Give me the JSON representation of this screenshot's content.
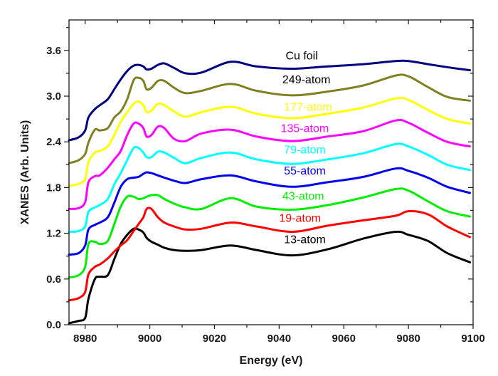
{
  "chart_data": {
    "type": "line",
    "title": "",
    "xlabel": "Energy (eV)",
    "ylabel": "XANES (Arb. Units)",
    "xlim": [
      8975,
      9100
    ],
    "ylim": [
      0,
      4.0
    ],
    "xticks": [
      8980,
      9000,
      9020,
      9040,
      9060,
      9080,
      9100
    ],
    "xtick_labels": [
      "8980",
      "9000",
      "9020",
      "9040",
      "9060",
      "9080",
      "9100"
    ],
    "xminor_step": 10,
    "yticks": [
      0.0,
      0.6,
      1.2,
      1.8,
      2.4,
      3.0,
      3.6
    ],
    "ytick_labels": [
      "0.0",
      "0.6",
      "1.2",
      "1.8",
      "2.4",
      "3.0",
      "3.6"
    ],
    "yminor_step": 0.3,
    "grid": false,
    "legend": "inline labels centered over each curve",
    "x": [
      8975,
      8978,
      8980,
      8981,
      8983,
      8984.5,
      8987,
      8989,
      8991,
      8993,
      8995,
      8996.5,
      8998,
      8999,
      9000.5,
      9002.5,
      9004.5,
      9007.5,
      9011,
      9016,
      9025,
      9033,
      9044,
      9055,
      9066,
      9076,
      9080,
      9086,
      9092,
      9099
    ],
    "series": [
      {
        "name": "13-atom",
        "color": "#000000",
        "values": [
          0.02,
          0.05,
          0.09,
          0.34,
          0.6,
          0.63,
          0.65,
          0.86,
          1.06,
          1.18,
          1.26,
          1.25,
          1.21,
          1.14,
          1.09,
          1.05,
          1.01,
          0.98,
          0.97,
          0.98,
          1.04,
          0.98,
          0.91,
          0.99,
          1.13,
          1.22,
          1.18,
          1.1,
          0.94,
          0.82
        ]
      },
      {
        "name": "19-atom",
        "color": "#ff0000",
        "values": [
          0.32,
          0.35,
          0.43,
          0.66,
          0.76,
          0.79,
          0.87,
          0.96,
          1.04,
          1.11,
          1.23,
          1.32,
          1.41,
          1.52,
          1.52,
          1.41,
          1.34,
          1.29,
          1.25,
          1.26,
          1.34,
          1.29,
          1.22,
          1.3,
          1.37,
          1.43,
          1.49,
          1.45,
          1.29,
          1.15
        ]
      },
      {
        "name": "43-atom",
        "color": "#00ee00",
        "values": [
          0.62,
          0.65,
          0.76,
          1.06,
          1.09,
          1.06,
          1.1,
          1.32,
          1.55,
          1.68,
          1.68,
          1.65,
          1.66,
          1.68,
          1.7,
          1.7,
          1.65,
          1.59,
          1.54,
          1.52,
          1.66,
          1.55,
          1.51,
          1.57,
          1.67,
          1.78,
          1.76,
          1.62,
          1.49,
          1.42
        ]
      },
      {
        "name": "55-atom",
        "color": "#0000ee",
        "values": [
          0.92,
          0.94,
          1.04,
          1.25,
          1.31,
          1.34,
          1.41,
          1.6,
          1.81,
          1.91,
          1.93,
          1.94,
          1.98,
          2.0,
          1.99,
          1.96,
          1.93,
          1.89,
          1.86,
          1.91,
          1.96,
          1.88,
          1.81,
          1.87,
          1.94,
          2.05,
          2.02,
          1.93,
          1.81,
          1.73
        ]
      },
      {
        "name": "79-atom",
        "color": "#00ffff",
        "values": [
          1.22,
          1.23,
          1.29,
          1.48,
          1.54,
          1.57,
          1.65,
          1.84,
          1.99,
          2.16,
          2.32,
          2.32,
          2.26,
          2.2,
          2.2,
          2.27,
          2.26,
          2.19,
          2.12,
          2.19,
          2.26,
          2.17,
          2.11,
          2.17,
          2.25,
          2.37,
          2.34,
          2.23,
          2.1,
          2.03
        ]
      },
      {
        "name": "135-atom",
        "color": "#ff00ff",
        "values": [
          1.52,
          1.53,
          1.61,
          1.87,
          1.95,
          1.96,
          2.06,
          2.17,
          2.28,
          2.49,
          2.64,
          2.64,
          2.58,
          2.47,
          2.49,
          2.6,
          2.58,
          2.44,
          2.41,
          2.51,
          2.56,
          2.47,
          2.41,
          2.47,
          2.54,
          2.68,
          2.65,
          2.52,
          2.4,
          2.34
        ]
      },
      {
        "name": "177-atom",
        "color": "#ffff00",
        "values": [
          1.82,
          1.85,
          1.91,
          2.13,
          2.26,
          2.28,
          2.34,
          2.49,
          2.66,
          2.79,
          2.9,
          2.93,
          2.88,
          2.79,
          2.81,
          2.9,
          2.88,
          2.8,
          2.73,
          2.79,
          2.86,
          2.77,
          2.71,
          2.77,
          2.85,
          2.97,
          2.95,
          2.82,
          2.7,
          2.64
        ]
      },
      {
        "name": "249-atom",
        "color": "#808020",
        "values": [
          2.12,
          2.16,
          2.24,
          2.39,
          2.56,
          2.55,
          2.58,
          2.72,
          2.8,
          2.96,
          3.21,
          3.24,
          3.2,
          3.09,
          3.11,
          3.2,
          3.2,
          3.11,
          3.04,
          3.07,
          3.16,
          3.07,
          3.01,
          3.06,
          3.14,
          3.27,
          3.26,
          3.12,
          2.99,
          2.94
        ]
      },
      {
        "name": "Cu foil",
        "color": "#000080",
        "values": [
          2.42,
          2.46,
          2.55,
          2.72,
          2.83,
          2.88,
          2.96,
          3.09,
          3.22,
          3.33,
          3.4,
          3.41,
          3.39,
          3.35,
          3.36,
          3.41,
          3.43,
          3.37,
          3.3,
          3.31,
          3.45,
          3.39,
          3.36,
          3.39,
          3.42,
          3.46,
          3.46,
          3.42,
          3.38,
          3.34
        ]
      }
    ],
    "annotations": [
      {
        "text": "Cu foil",
        "color": "#000000",
        "x": 9042,
        "y": 3.48
      },
      {
        "text": "249-atom",
        "color": "#000000",
        "x": 9041,
        "y": 3.17
      },
      {
        "text": "177-atom",
        "color": "#ffff00",
        "x": 9041.5,
        "y": 2.81
      },
      {
        "text": "135-atom",
        "color": "#ff00ff",
        "x": 9040.5,
        "y": 2.53
      },
      {
        "text": "79-atom",
        "color": "#00ffff",
        "x": 9041.5,
        "y": 2.25
      },
      {
        "text": "55-atom",
        "color": "#0000ee",
        "x": 9041.5,
        "y": 1.97
      },
      {
        "text": "43-atom",
        "color": "#00ee00",
        "x": 9041,
        "y": 1.64
      },
      {
        "text": "19-atom",
        "color": "#ff0000",
        "x": 9040,
        "y": 1.35
      },
      {
        "text": "13-atom",
        "color": "#000000",
        "x": 9041.5,
        "y": 1.07
      }
    ]
  }
}
